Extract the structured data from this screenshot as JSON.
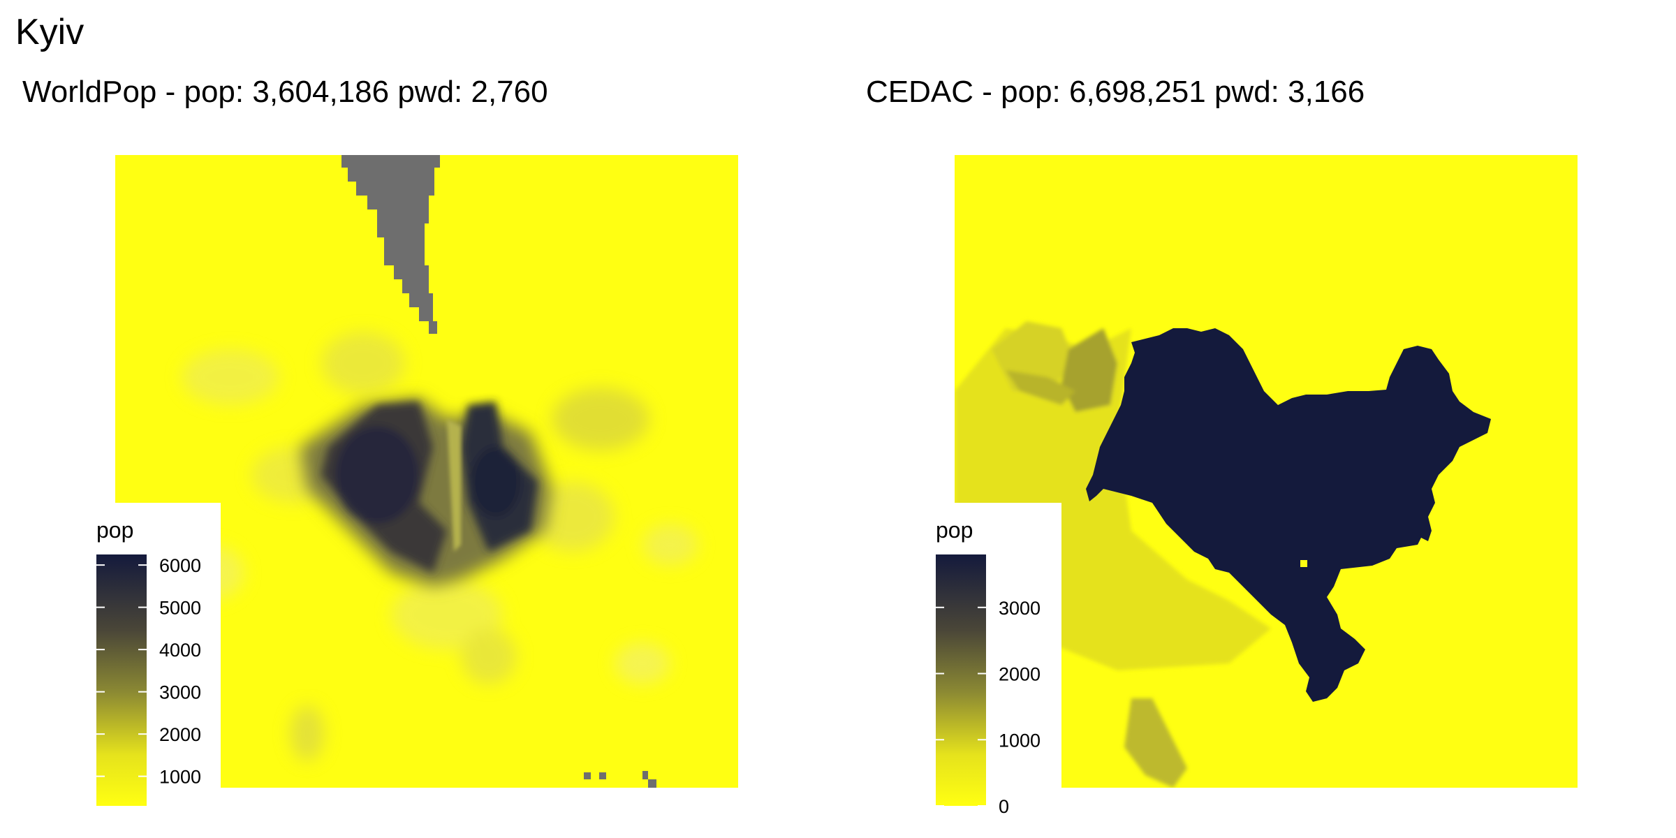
{
  "page": {
    "title": "Kyiv"
  },
  "panels": [
    {
      "id": "worldpop",
      "title": "WorldPop - pop: 3,604,186 pwd: 2,760",
      "legend": {
        "title": "pop",
        "ticks": [
          "1000",
          "2000",
          "3000",
          "4000",
          "5000",
          "6000"
        ],
        "tick_values": [
          1000,
          2000,
          3000,
          4000,
          5000,
          6000
        ],
        "range": [
          300,
          6250
        ]
      },
      "no_data_color": "#6e6e6e"
    },
    {
      "id": "cedac",
      "title": "CEDAC - pop: 6,698,251 pwd: 3,166",
      "legend": {
        "title": "pop",
        "ticks": [
          "0",
          "1000",
          "2000",
          "3000"
        ],
        "tick_values": [
          0,
          1000,
          2000,
          3000
        ],
        "range": [
          0,
          3800
        ]
      }
    }
  ],
  "colors": {
    "low": "#ffff12",
    "mid": "#8c8a33",
    "high": "#141a3c",
    "background": "#ffffff"
  }
}
